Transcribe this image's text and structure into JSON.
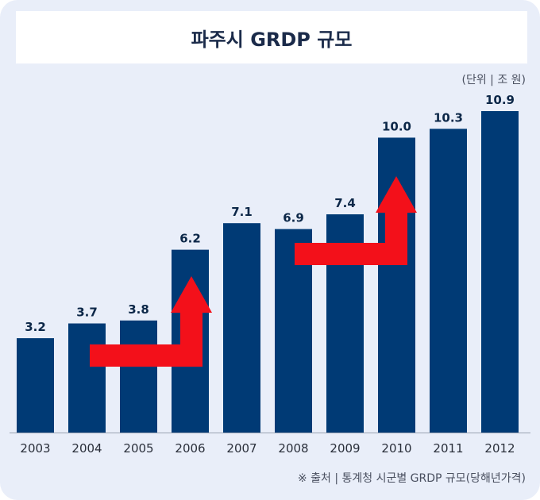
{
  "title": "파주시 GRDP 규모",
  "unit_note": "(단위 | 조 원)",
  "source_note": "※ 출처 | 통계청 시군별 GRDP 규모(당해년가격)",
  "colors": {
    "background": "#e9eef9",
    "bar": "#003a75",
    "value_label": "#0c2748",
    "arrow": "#f3101a",
    "axis": "#9aa2b2"
  },
  "chart_data": {
    "type": "bar",
    "title": "파주시 GRDP 규모",
    "categories": [
      "2003",
      "2004",
      "2005",
      "2006",
      "2007",
      "2008",
      "2009",
      "2010",
      "2011",
      "2012"
    ],
    "values": [
      3.2,
      3.7,
      3.8,
      6.2,
      7.1,
      6.9,
      7.4,
      10.0,
      10.3,
      10.9
    ],
    "value_labels": [
      "3.2",
      "3.7",
      "3.8",
      "6.2",
      "7.1",
      "6.9",
      "7.4",
      "10.0",
      "10.3",
      "10.9"
    ],
    "unit": "(단위 | 조 원)",
    "ylim": [
      0,
      10.9
    ],
    "grid": false,
    "legend": "none",
    "annotations": [
      "arrow-up-to-2006",
      "arrow-up-to-2010"
    ]
  }
}
